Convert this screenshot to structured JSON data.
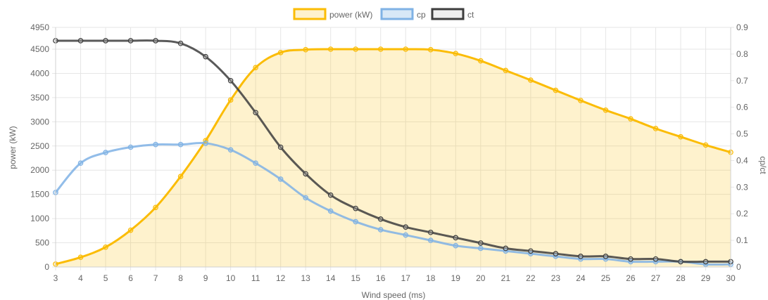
{
  "chart_data": {
    "type": "line",
    "x": [
      3,
      4,
      5,
      6,
      7,
      8,
      9,
      10,
      11,
      12,
      13,
      14,
      15,
      16,
      17,
      18,
      19,
      20,
      21,
      22,
      23,
      24,
      25,
      26,
      27,
      28,
      29,
      30
    ],
    "xlabel": "Wind speed (ms)",
    "ylabel_left": "power (kW)",
    "ylabel_right": "cp/ct",
    "ylim_left": [
      0,
      4950
    ],
    "ylim_right": [
      0,
      0.9
    ],
    "yticks_left": [
      0,
      500,
      1000,
      1500,
      2000,
      2500,
      3000,
      3500,
      4000,
      4500,
      4950
    ],
    "yticks_right": [
      0,
      0.1,
      0.2,
      0.3,
      0.4,
      0.5,
      0.6,
      0.7,
      0.8,
      0.9
    ],
    "grid": true,
    "legend_position": "top-center",
    "series": [
      {
        "name": "power (kW)",
        "axis": "left",
        "color": "#fbbc05",
        "fill": "rgba(251,188,5,0.2)",
        "values": [
          60,
          200,
          410,
          760,
          1230,
          1870,
          2610,
          3450,
          4120,
          4430,
          4490,
          4500,
          4500,
          4500,
          4500,
          4490,
          4410,
          4260,
          4060,
          3860,
          3650,
          3440,
          3240,
          3060,
          2860,
          2690,
          2520,
          2370
        ]
      },
      {
        "name": "cp",
        "axis": "right",
        "color": "#7fb2e5",
        "fill": "rgba(127,178,229,0.3)",
        "values": [
          0.28,
          0.39,
          0.43,
          0.45,
          0.46,
          0.46,
          0.465,
          0.44,
          0.39,
          0.33,
          0.26,
          0.21,
          0.17,
          0.14,
          0.12,
          0.1,
          0.08,
          0.07,
          0.06,
          0.05,
          0.04,
          0.03,
          0.03,
          0.02,
          0.02,
          0.02,
          0.01,
          0.01
        ]
      },
      {
        "name": "ct",
        "axis": "right",
        "color": "#3d3d3d",
        "fill": "rgba(200,200,200,0.3)",
        "values": [
          0.85,
          0.85,
          0.85,
          0.85,
          0.85,
          0.84,
          0.79,
          0.7,
          0.58,
          0.45,
          0.35,
          0.27,
          0.22,
          0.18,
          0.15,
          0.13,
          0.11,
          0.09,
          0.07,
          0.06,
          0.05,
          0.04,
          0.04,
          0.03,
          0.03,
          0.02,
          0.02,
          0.02
        ]
      }
    ]
  }
}
